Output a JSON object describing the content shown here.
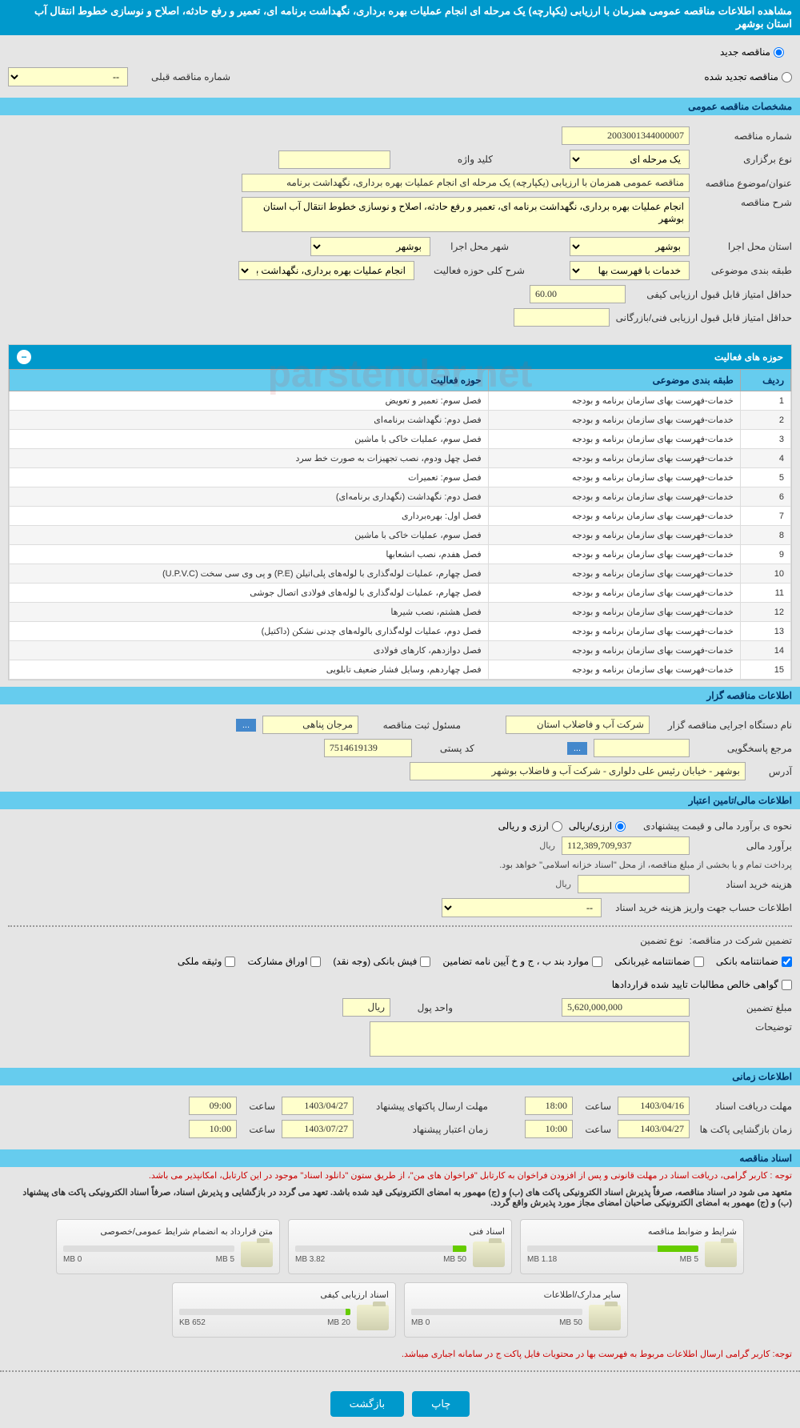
{
  "header": {
    "title": "مشاهده اطلاعات مناقصه عمومی همزمان با ارزیابی (یکپارچه) یک مرحله ای انجام عملیات بهره برداری، نگهداشت برنامه ای، تعمیر و رفع حادثه، اصلاح و نوسازی خطوط انتقال آب استان بوشهر"
  },
  "tender_type": {
    "options": [
      "مناقصه جدید",
      "مناقصه تجدید شده"
    ],
    "selected": 0,
    "prev_tender_label": "شماره مناقصه قبلی",
    "prev_tender_value": "--"
  },
  "general_spec": {
    "section_title": "مشخصات مناقصه عمومی",
    "tender_no_label": "شماره مناقصه",
    "tender_no": "2003001344000007",
    "holding_type_label": "نوع برگزاری",
    "holding_type": "یک مرحله ای",
    "keyword_label": "کلید واژه",
    "keyword": "",
    "subject_label": "عنوان/موضوع مناقصه",
    "subject": "مناقصه عمومی همزمان با ارزیابی (یکپارچه) یک مرحله ای انجام عملیات بهره برداری، نگهداشت برنامه",
    "desc_label": "شرح مناقصه",
    "desc": "انجام عملیات بهره برداری، نگهداشت برنامه ای، تعمیر و رفع حادثه، اصلاح و نوسازی خطوط انتقال آب استان بوشهر",
    "province_label": "استان محل اجرا",
    "province": "بوشهر",
    "city_label": "شهر محل اجرا",
    "city": "بوشهر",
    "category_label": "طبقه بندی موضوعی",
    "category": "خدمات با فهرست بها",
    "scope_label": "شرح کلی حوزه فعالیت",
    "scope": "انجام عملیات بهره برداری، نگهداشت برنامه ای، تعمیر",
    "min_quality_label": "حداقل امتیاز قابل قبول ارزیابی کیفی",
    "min_quality": "60.00",
    "min_tech_label": "حداقل امتیاز قابل قبول ارزیابی فنی/بازرگانی",
    "min_tech": ""
  },
  "activity_table": {
    "title": "حوزه های فعالیت",
    "columns": [
      "ردیف",
      "طبقه بندی موضوعی",
      "حوزه فعالیت"
    ],
    "rows": [
      [
        "1",
        "خدمات-فهرست بهای سازمان برنامه و بودجه",
        "فصل سوم: تعمیر و تعویض"
      ],
      [
        "2",
        "خدمات-فهرست بهای سازمان برنامه و بودجه",
        "فصل دوم: نگهداشت برنامه‌ای"
      ],
      [
        "3",
        "خدمات-فهرست بهای سازمان برنامه و بودجه",
        "فصل سوم، عملیات خاکی با ماشین"
      ],
      [
        "4",
        "خدمات-فهرست بهای سازمان برنامه و بودجه",
        "فصل چهل ودوم، نصب تجهیزات به صورت خط سرد"
      ],
      [
        "5",
        "خدمات-فهرست بهای سازمان برنامه و بودجه",
        "فصل سوم: تعمیرات"
      ],
      [
        "6",
        "خدمات-فهرست بهای سازمان برنامه و بودجه",
        "فصل دوم: نگهداشت (نگهداری برنامه‌ای)"
      ],
      [
        "7",
        "خدمات-فهرست بهای سازمان برنامه و بودجه",
        "فصل اول: بهره‌برداری"
      ],
      [
        "8",
        "خدمات-فهرست بهای سازمان برنامه و بودجه",
        "فصل سوم، عملیات خاکی با ماشین"
      ],
      [
        "9",
        "خدمات-فهرست بهای سازمان برنامه و بودجه",
        "فصل هفدم، نصب انشعابها"
      ],
      [
        "10",
        "خدمات-فهرست بهای سازمان برنامه و بودجه",
        "فصل چهارم، عملیات لوله‌گذاری با لوله‌های پلی‌اتیلن (P.E) و پی وی سی سخت (U.P.V.C)"
      ],
      [
        "11",
        "خدمات-فهرست بهای سازمان برنامه و بودجه",
        "فصل چهارم، عملیات لوله‌گذاری با لوله‌های فولادی اتصال جوشی"
      ],
      [
        "12",
        "خدمات-فهرست بهای سازمان برنامه و بودجه",
        "فصل هشتم، نصب شیرها"
      ],
      [
        "13",
        "خدمات-فهرست بهای سازمان برنامه و بودجه",
        "فصل دوم، عملیات لوله‌گذاری بالوله‌های چدنی نشکن (داکتیل)"
      ],
      [
        "14",
        "خدمات-فهرست بهای سازمان برنامه و بودجه",
        "فصل دوازدهم، کارهای فولادی"
      ],
      [
        "15",
        "خدمات-فهرست بهای سازمان برنامه و بودجه",
        "فصل چهاردهم، وسایل فشار ضعیف تابلویی"
      ]
    ]
  },
  "organizer": {
    "section_title": "اطلاعات مناقصه گزار",
    "org_name_label": "نام دستگاه اجرایی مناقصه گزار",
    "org_name": "شرکت آب و فاضلاب استان",
    "registrar_label": "مسئول ثبت مناقصه",
    "registrar": "مرجان پناهی",
    "respondent_label": "مرجع پاسخگویی",
    "respondent": "",
    "postal_label": "کد پستی",
    "postal": "7514619139",
    "address_label": "آدرس",
    "address": "بوشهر - خیابان رئیس علی دلواری - شرکت آب و فاضلاب بوشهر"
  },
  "financial": {
    "section_title": "اطلاعات مالی/تامین اعتبار",
    "method_label": "نحوه ی برآورد مالی و قیمت پیشنهادی",
    "method_options": [
      "ارزی/ریالی",
      "ارزی و ریالی"
    ],
    "estimate_label": "برآورد مالی",
    "estimate": "112,389,709,937",
    "currency": "ريال",
    "payment_note": "پرداخت تمام و یا بخشی از مبلغ مناقصه، از محل \"اسناد خزانه اسلامی\" خواهد بود.",
    "doc_cost_label": "هزینه خرید اسناد",
    "doc_cost": "",
    "account_label": "اطلاعات حساب جهت واریز هزینه خرید اسناد",
    "account": "--",
    "guarantee_label": "تضمین شرکت در مناقصه:",
    "guarantee_type_label": "نوع تضمین",
    "guarantee_options": [
      "ضمانتنامه بانکی",
      "ضمانتنامه غیربانکی",
      "موارد بند ب ، ج و خ آیین نامه تضامین",
      "فیش بانکی (وجه نقد)",
      "اوراق مشارکت",
      "وثیقه ملکی",
      "گواهی خالص مطالبات تایید شده قراردادها"
    ],
    "guarantee_checked": [
      true,
      false,
      false,
      false,
      false,
      false,
      false
    ],
    "guarantee_amount_label": "مبلغ تضمین",
    "guarantee_amount": "5,620,000,000",
    "money_unit_label": "واحد پول",
    "money_unit": "ريال",
    "desc_label": "توضیحات",
    "desc": ""
  },
  "timing": {
    "section_title": "اطلاعات زمانی",
    "receive_deadline_label": "مهلت دریافت اسناد",
    "receive_deadline_date": "1403/04/16",
    "receive_deadline_time": "18:00",
    "open_label": "زمان بازگشایی پاکت ها",
    "open_date": "1403/04/27",
    "open_time": "10:00",
    "submit_deadline_label": "مهلت ارسال پاکتهای پیشنهاد",
    "submit_deadline_date": "1403/04/27",
    "submit_deadline_time": "09:00",
    "validity_label": "زمان اعتبار پیشنهاد",
    "validity_date": "1403/07/27",
    "validity_time": "10:00",
    "time_label": "ساعت"
  },
  "documents": {
    "section_title": "اسناد مناقصه",
    "note1": "توجه : کاربر گرامی، دریافت اسناد در مهلت قانونی و پس از افزودن فراخوان به کارتابل \"فراخوان های من\"، از طریق ستون \"دانلود اسناد\" موجود در این کارتابل، امکانپذیر می باشد.",
    "note2": "متعهد می شود در اسناد مناقصه، صرفاً پذیرش اسناد الکترونیکی پاکت های (ب) و (ج) مهمور به امضای الکترونیکی قید شده باشد. تعهد می گردد در بازگشایی و پذیرش اسناد، صرفاً اسناد الکترونیکی پاکت های پیشنهاد (ب) و (ج) مهمور به امضای الکترونیکی صاحبان امضای مجاز مورد پذیرش واقع گردد.",
    "files": [
      {
        "title": "شرایط و ضوابط مناقصه",
        "used": "1.18 MB",
        "total": "5 MB",
        "percent": 24
      },
      {
        "title": "اسناد فنی",
        "used": "3.82 MB",
        "total": "50 MB",
        "percent": 8
      },
      {
        "title": "متن قرارداد به انضمام شرایط عمومی/خصوصی",
        "used": "0 MB",
        "total": "5 MB",
        "percent": 0
      },
      {
        "title": "سایر مدارک/اطلاعات",
        "used": "0 MB",
        "total": "50 MB",
        "percent": 0
      },
      {
        "title": "اسناد ارزیابی کیفی",
        "used": "652 KB",
        "total": "20 MB",
        "percent": 3
      }
    ],
    "note3": "توجه: کاربر گرامی ارسال اطلاعات مربوط به فهرست بها در محتویات فایل پاکت ج در سامانه اجباری میباشد."
  },
  "buttons": {
    "print": "چاپ",
    "back": "بازگشت"
  },
  "watermark": "parstender.net",
  "colors": {
    "primary": "#0099cc",
    "secondary": "#66ccee",
    "input_bg": "#ffffcc",
    "red": "#cc0000"
  }
}
